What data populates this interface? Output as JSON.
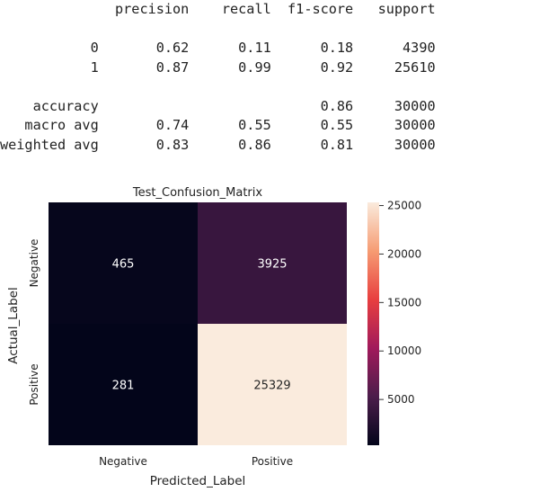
{
  "report": {
    "lines": [
      "              precision    recall  f1-score   support",
      "",
      "           0       0.62      0.11      0.18      4390",
      "           1       0.87      0.99      0.92     25610",
      "",
      "    accuracy                           0.86     30000",
      "   macro avg       0.74      0.55      0.55     30000",
      "weighted avg       0.83      0.86      0.81     30000"
    ]
  },
  "chart_data": {
    "type": "heatmap",
    "title": "Test_Confusion_Matrix",
    "xlabel": "Predicted_Label",
    "ylabel": "Actual_Label",
    "x_categories": [
      "Negative",
      "Positive"
    ],
    "y_categories": [
      "Negative",
      "Positive"
    ],
    "values": [
      [
        465,
        3925
      ],
      [
        281,
        25329
      ]
    ],
    "colorbar": {
      "min": 281,
      "max": 25329,
      "ticks": [
        5000,
        10000,
        15000,
        20000,
        25000
      ],
      "colormap": "rocket",
      "stops": [
        "#03051a",
        "#4c1d4b",
        "#a11a5b",
        "#e83f3f",
        "#f69c73",
        "#faebdd"
      ]
    }
  }
}
